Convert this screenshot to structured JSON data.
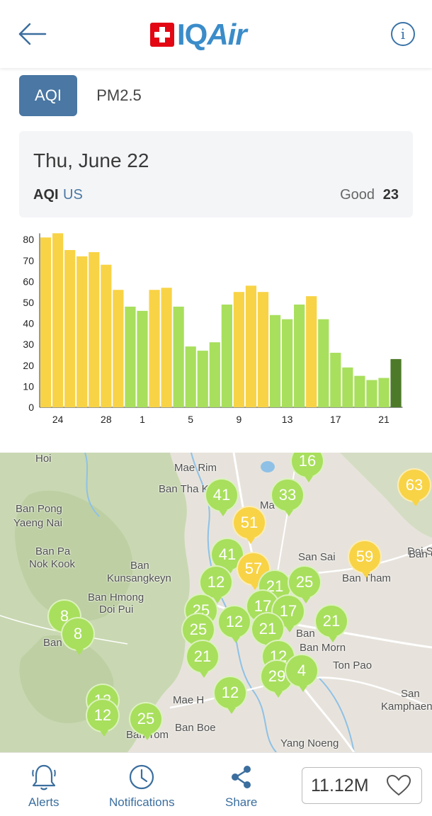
{
  "header": {
    "brand_text": "IQAir",
    "brand_text_plain": "IQ",
    "brand_text_italic": "Air",
    "back_icon": "arrow-left-icon",
    "info_icon": "info-icon",
    "info_glyph": "i"
  },
  "tabs": [
    {
      "label": "AQI",
      "active": true
    },
    {
      "label": "PM2.5",
      "active": false
    }
  ],
  "summary": {
    "date": "Thu, June 22",
    "metric": "AQI",
    "standard": "US",
    "status": "Good",
    "value": "23"
  },
  "colors": {
    "good": "#a8df5d",
    "moderate": "#f8d346",
    "selected": "#4d7a29",
    "accent": "#4a77a3"
  },
  "chart_data": {
    "type": "bar",
    "x_ticks": [
      "24",
      "28",
      "1",
      "5",
      "9",
      "13",
      "17",
      "21"
    ],
    "y_ticks": [
      "0",
      "10",
      "20",
      "30",
      "40",
      "50",
      "60",
      "70",
      "80"
    ],
    "ylim": [
      0,
      83
    ],
    "categories": [
      "23",
      "24",
      "25",
      "26",
      "27",
      "28",
      "29",
      "30",
      "1",
      "2",
      "3",
      "4",
      "5",
      "6",
      "7",
      "8",
      "9",
      "10",
      "11",
      "12",
      "13",
      "14",
      "15",
      "16",
      "17",
      "18",
      "19",
      "20",
      "21",
      "22"
    ],
    "values": [
      81,
      83,
      75,
      72,
      74,
      68,
      56,
      48,
      46,
      56,
      57,
      48,
      29,
      27,
      31,
      49,
      55,
      58,
      55,
      44,
      42,
      49,
      53,
      42,
      26,
      19,
      15,
      13,
      14,
      23
    ],
    "levels": [
      "moderate",
      "moderate",
      "moderate",
      "moderate",
      "moderate",
      "moderate",
      "moderate",
      "good",
      "good",
      "moderate",
      "moderate",
      "good",
      "good",
      "good",
      "good",
      "good",
      "moderate",
      "moderate",
      "moderate",
      "good",
      "good",
      "good",
      "moderate",
      "good",
      "good",
      "good",
      "good",
      "good",
      "good",
      "selected"
    ]
  },
  "map": {
    "places": [
      {
        "name": "Hoi"
      },
      {
        "name": "Mae Rim"
      },
      {
        "name": "Ban Tha K"
      },
      {
        "name": "Ban Pong"
      },
      {
        "name": "Yaeng Nai"
      },
      {
        "name": "Ma"
      },
      {
        "name": "Ban Pa"
      },
      {
        "name": "Nok Kook"
      },
      {
        "name": "Ban"
      },
      {
        "name": "Kunsangkeyn"
      },
      {
        "name": "San Sai"
      },
      {
        "name": "Doi S"
      },
      {
        "name": "Ban C"
      },
      {
        "name": "Ban Tham"
      },
      {
        "name": "Ban Hmong"
      },
      {
        "name": "Doi Pui"
      },
      {
        "name": "Ban"
      },
      {
        "name": "Ban Morn"
      },
      {
        "name": "Ton Pao"
      },
      {
        "name": "Ban"
      },
      {
        "name": "San"
      },
      {
        "name": "Kamphaen"
      },
      {
        "name": "Mae H"
      },
      {
        "name": "Ban Boe"
      },
      {
        "name": "Ban Yom"
      },
      {
        "name": "Yang Noeng"
      }
    ],
    "pins": [
      {
        "value": "16",
        "level": "good"
      },
      {
        "value": "63",
        "level": "moderate"
      },
      {
        "value": "41",
        "level": "good"
      },
      {
        "value": "33",
        "level": "good"
      },
      {
        "value": "51",
        "level": "moderate"
      },
      {
        "value": "41",
        "level": "good"
      },
      {
        "value": "59",
        "level": "moderate"
      },
      {
        "value": "57",
        "level": "moderate"
      },
      {
        "value": "12",
        "level": "good"
      },
      {
        "value": "21",
        "level": "good"
      },
      {
        "value": "25",
        "level": "good"
      },
      {
        "value": "8",
        "level": "good"
      },
      {
        "value": "8",
        "level": "good"
      },
      {
        "value": "25",
        "level": "good"
      },
      {
        "value": "17",
        "level": "good"
      },
      {
        "value": "17",
        "level": "good"
      },
      {
        "value": "12",
        "level": "good"
      },
      {
        "value": "21",
        "level": "good"
      },
      {
        "value": "25",
        "level": "good"
      },
      {
        "value": "21",
        "level": "good"
      },
      {
        "value": "21",
        "level": "good"
      },
      {
        "value": "12",
        "level": "good"
      },
      {
        "value": "29",
        "level": "good"
      },
      {
        "value": "4",
        "level": "good"
      },
      {
        "value": "12",
        "level": "good"
      },
      {
        "value": "12",
        "level": "good"
      },
      {
        "value": "12",
        "level": "good"
      },
      {
        "value": "25",
        "level": "good"
      }
    ]
  },
  "bottom_bar": {
    "items": [
      {
        "label": "Alerts",
        "icon": "bell-icon"
      },
      {
        "label": "Notifications",
        "icon": "clock-icon"
      },
      {
        "label": "Share",
        "icon": "share-icon"
      }
    ],
    "follow_count": "11.12M",
    "follow_icon": "heart-icon"
  }
}
